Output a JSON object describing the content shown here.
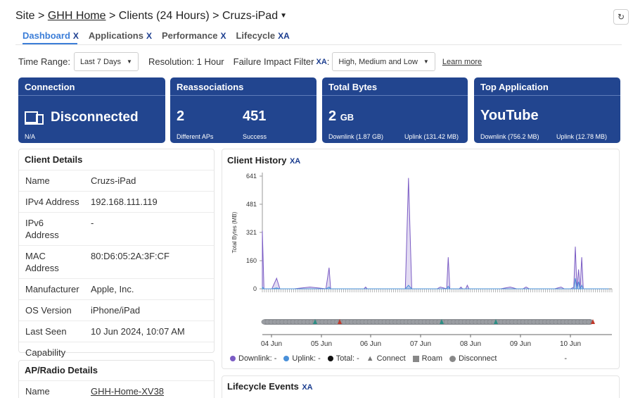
{
  "breadcrumb": {
    "site": "Site",
    "sep": ">",
    "home": "GHH Home",
    "clients": "Clients (24 Hours)",
    "device": "Cruzs-iPad"
  },
  "tabs": [
    {
      "label": "Dashboard",
      "x": "X",
      "active": true
    },
    {
      "label": "Applications",
      "x": "X"
    },
    {
      "label": "Performance",
      "x": "X"
    },
    {
      "label": "Lifecycle",
      "x": "XA"
    }
  ],
  "toolbar": {
    "time_range_label": "Time Range:",
    "time_range_value": "Last 7 Days",
    "resolution": "Resolution: 1 Hour",
    "failure_label": "Failure Impact Filter",
    "failure_badge": "XA",
    "failure_value": "High, Medium and Low",
    "learn_more": "Learn more"
  },
  "cards": {
    "connection": {
      "title": "Connection",
      "value": "Disconnected",
      "sub": "N/A"
    },
    "reassociations": {
      "title": "Reassociations",
      "value1": "2",
      "sub1": "Different APs",
      "value2": "451",
      "sub2": "Success"
    },
    "total_bytes": {
      "title": "Total Bytes",
      "value": "2",
      "unit": "GB",
      "sub1": "Downlink (1.87 GB)",
      "sub2": "Uplink (131.42 MB)"
    },
    "top_app": {
      "title": "Top Application",
      "value": "YouTube",
      "sub1": "Downlink (756.2 MB)",
      "sub2": "Uplink (12.78 MB)"
    }
  },
  "client_details": {
    "title": "Client Details",
    "rows": [
      {
        "k": "Name",
        "v": "Cruzs-iPad"
      },
      {
        "k": "IPv4 Address",
        "v": "192.168.111.119"
      },
      {
        "k": "IPv6 Address",
        "v": "-"
      },
      {
        "k": "MAC Address",
        "v": "80:D6:05:2A:3F:CF"
      },
      {
        "k": "Manufacturer",
        "v": "Apple, Inc."
      },
      {
        "k": "OS Version",
        "v": "iPhone/iPad"
      },
      {
        "k": "Last Seen",
        "v": "10 Jun 2024, 10:07 AM"
      },
      {
        "k": "Capability",
        "v": ""
      }
    ]
  },
  "ap_details": {
    "title": "AP/Radio Details",
    "name_label": "Name",
    "name_value": "GHH-Home-XV38"
  },
  "client_history": {
    "title": "Client History",
    "badge": "XA",
    "legend": {
      "downlink": "Downlink: -",
      "uplink": "Uplink: -",
      "total": "Total: -",
      "connect": "Connect",
      "roam": "Roam",
      "disconnect": "Disconnect",
      "dash": "-"
    }
  },
  "lifecycle": {
    "title": "Lifecycle Events",
    "badge": "XA"
  },
  "colors": {
    "card": "#22458f",
    "tab_active": "#3c7ed8",
    "downlink": "#7b5cc4",
    "uplink": "#4a90d9",
    "timeline": "#8c8f94",
    "event": "#c0392b"
  },
  "chart_data": {
    "type": "area",
    "title": "",
    "xlabel": "",
    "ylabel": "Total Bytes (MB)",
    "y_ticks": [
      0,
      160,
      321,
      481,
      641
    ],
    "ylim": [
      0,
      641
    ],
    "x_ticks": [
      "04 Jun",
      "05 Jun",
      "06 Jun",
      "07 Jun",
      "08 Jun",
      "09 Jun",
      "10 Jun"
    ],
    "x": [
      0,
      0.05,
      0.3,
      0.45,
      0.55,
      1.0,
      1.5,
      2.0,
      2.1,
      2.15,
      2.2,
      2.5,
      3.0,
      3.2,
      3.25,
      3.3,
      3.5,
      4.0,
      4.5,
      4.6,
      4.7,
      5.0,
      5.5,
      5.6,
      5.8,
      5.85,
      5.9,
      6.0,
      6.2,
      6.25,
      6.3,
      6.4,
      6.45,
      6.5,
      6.6,
      7.0,
      7.5,
      7.8,
      8.0,
      8.2,
      8.3,
      8.4,
      9.0,
      9.2,
      9.4,
      9.5,
      9.7,
      9.8,
      9.85,
      9.9,
      9.95,
      10.0,
      10.05,
      10.1,
      10.5,
      10.9
    ],
    "series": [
      {
        "name": "Downlink",
        "values": [
          330,
          0,
          0,
          60,
          0,
          0,
          10,
          0,
          120,
          0,
          0,
          0,
          0,
          0,
          10,
          0,
          0,
          0,
          0,
          630,
          0,
          0,
          0,
          10,
          0,
          180,
          0,
          0,
          0,
          10,
          0,
          0,
          20,
          0,
          0,
          0,
          0,
          10,
          0,
          0,
          10,
          0,
          0,
          0,
          10,
          0,
          0,
          10,
          240,
          0,
          110,
          0,
          180,
          0,
          0,
          0
        ]
      },
      {
        "name": "Uplink",
        "values": [
          10,
          0,
          0,
          5,
          0,
          0,
          0,
          0,
          10,
          0,
          0,
          0,
          0,
          0,
          0,
          0,
          0,
          0,
          0,
          20,
          0,
          0,
          0,
          0,
          0,
          15,
          0,
          0,
          0,
          0,
          0,
          0,
          0,
          0,
          0,
          0,
          0,
          0,
          0,
          0,
          0,
          0,
          0,
          0,
          0,
          0,
          0,
          0,
          60,
          0,
          40,
          0,
          20,
          0,
          0,
          0
        ]
      }
    ]
  }
}
